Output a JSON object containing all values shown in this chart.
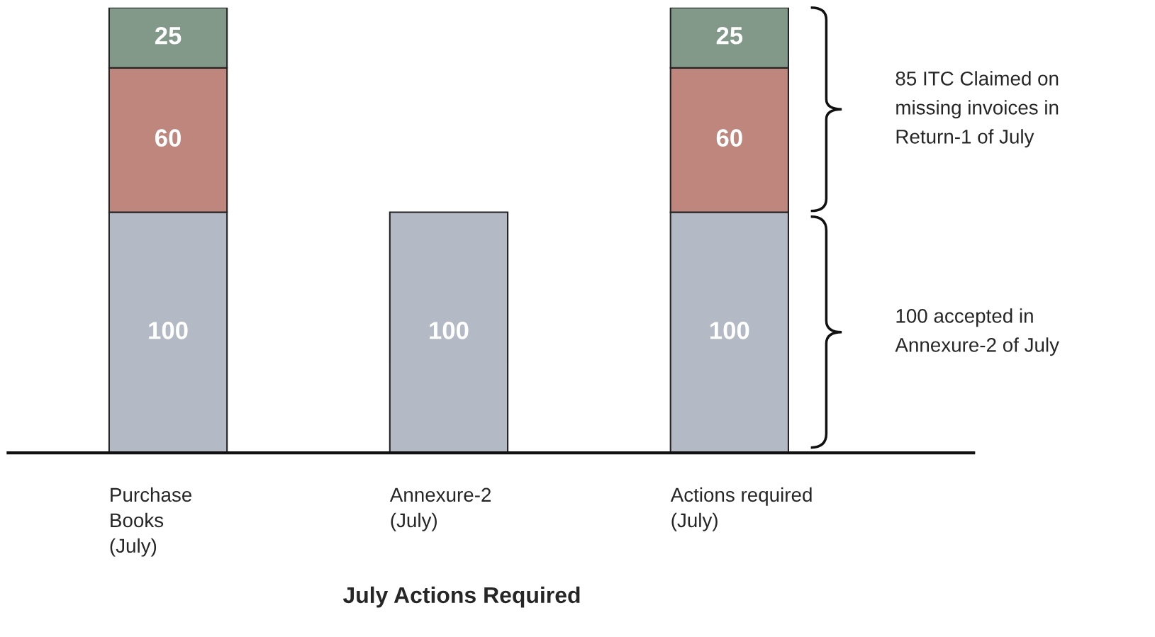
{
  "chart_data": {
    "type": "bar",
    "stacked": true,
    "data_labels": true,
    "xlabel": "July Actions Required",
    "categories": [
      "Purchase\nBooks\n(July)",
      "Annexure-2\n(July)",
      "Actions required\n(July)"
    ],
    "series": [
      {
        "color": "#b3bac5",
        "values": [
          100,
          100,
          100
        ]
      },
      {
        "color": "#bf867d",
        "values": [
          60,
          null,
          60
        ]
      },
      {
        "color": "#82998a",
        "values": [
          25,
          null,
          25
        ]
      }
    ],
    "annotations": [
      "85 ITC Claimed on\nmissing invoices in\nReturn-1 of July",
      "100 accepted in\nAnnexure-2 of July"
    ],
    "grid": false,
    "legend": false
  }
}
